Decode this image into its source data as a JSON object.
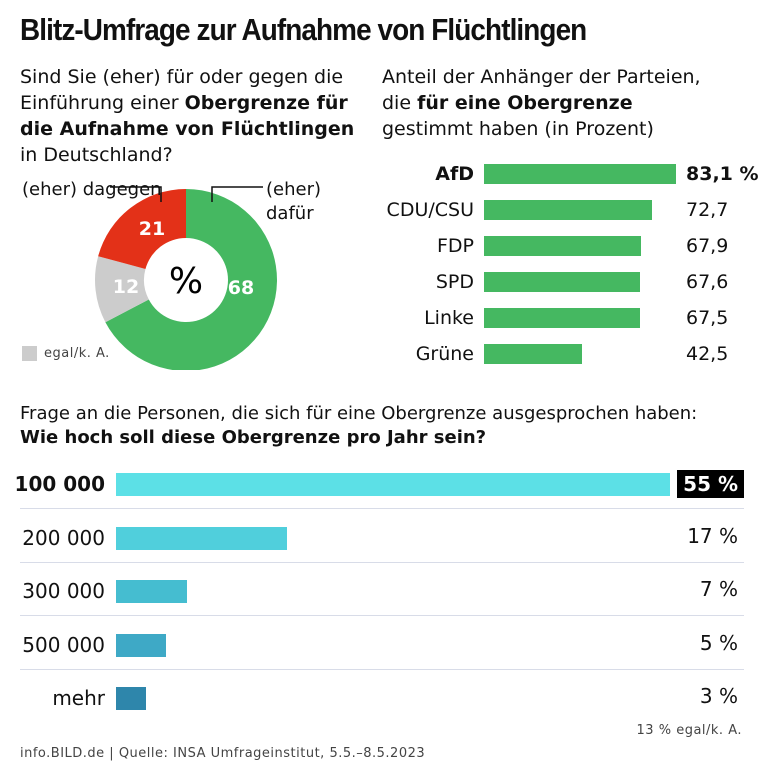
{
  "title": "Blitz-Umfrage zur Aufnahme von Flüchtlingen",
  "left_question": {
    "pre": "Sind Sie (eher) für oder gegen die Einführung einer ",
    "bold": "Obergrenze für die Aufnahme von Flüchtlingen",
    "post": " in Deutschland?"
  },
  "right_question": {
    "pre": "Anteil der Anhänger der Parteien, die ",
    "bold": "für eine Obergrenze",
    "post": " gestimmt haben (in Prozent)"
  },
  "bottom_question": {
    "line1": "Frage an die Personen, die sich für eine Obergrenze ausgesprochen haben:",
    "line2": "Wie hoch soll diese Obergrenze pro Jahr sein?"
  },
  "footer": "info.BILD.de | Quelle: INSA Umfrageinstitut, 5.5.–8.5.2023",
  "chart_data": [
    {
      "type": "pie",
      "variant": "donut",
      "center_label": "%",
      "slices": [
        {
          "label": "(eher) dafür",
          "value": 68,
          "color": "#45b861"
        },
        {
          "label": "egal/k. A.",
          "value": 12,
          "color": "#cccccc"
        },
        {
          "label": "(eher) dagegen",
          "value": 21,
          "color": "#e33118"
        }
      ],
      "legend": "egal/k. A."
    },
    {
      "type": "bar",
      "orientation": "horizontal",
      "categories": [
        "AfD",
        "CDU/CSU",
        "FDP",
        "SPD",
        "Linke",
        "Grüne"
      ],
      "values": [
        83.1,
        72.7,
        67.9,
        67.6,
        67.5,
        42.5
      ],
      "value_labels": [
        "83,1 %",
        "72,7",
        "67,9",
        "67,6",
        "67,5",
        "42,5"
      ],
      "highlight": "AfD",
      "color": "#45b861"
    },
    {
      "type": "bar",
      "orientation": "horizontal",
      "categories": [
        "100 000",
        "200 000",
        "300 000",
        "500 000",
        "mehr"
      ],
      "values": [
        55,
        17,
        7,
        5,
        3
      ],
      "value_labels": [
        "55 %",
        "17 %",
        "7 %",
        "5 %",
        "3 %"
      ],
      "highlight": "100 000",
      "colors": [
        "#5ce0e6",
        "#50cfdc",
        "#45bdd0",
        "#3ea9c6",
        "#2e86ab"
      ],
      "note": "13 % egal/k. A."
    }
  ]
}
